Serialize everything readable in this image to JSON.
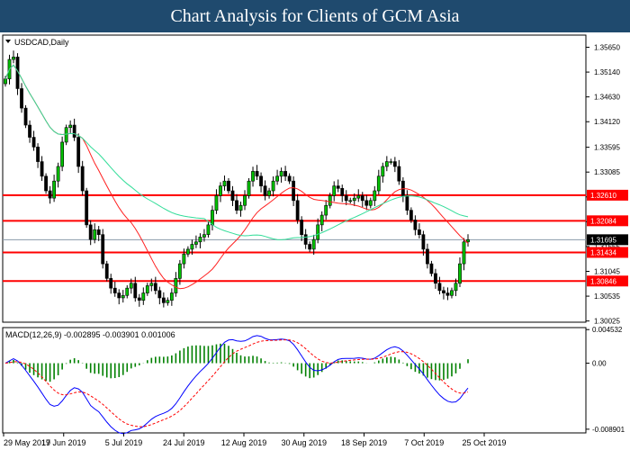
{
  "header": {
    "title": "Chart Analysis for Clients of GCM Asia"
  },
  "chart_data": [
    {
      "type": "candlestick",
      "symbol_label": "USDCAD,Daily",
      "ylim": [
        1.3,
        1.359
      ],
      "price_axis_ticks": [
        "1.35650",
        "1.35140",
        "1.34630",
        "1.34120",
        "1.33595",
        "1.33085",
        "1.32575",
        "1.32065",
        "1.31555",
        "1.31045",
        "1.30535",
        "1.30025"
      ],
      "time_axis_ticks": [
        "29 May 2019",
        "17 Jun 2019",
        "5 Jul 2019",
        "24 Jul 2019",
        "12 Aug 2019",
        "30 Aug 2019",
        "18 Sep 2019",
        "7 Oct 2019",
        "25 Oct 2019"
      ],
      "horizontal_levels": [
        {
          "label": "1.32610",
          "value": 1.3261,
          "color": "#ff0000"
        },
        {
          "label": "1.32084",
          "value": 1.32084,
          "color": "#ff0000"
        },
        {
          "label": "1.31434",
          "value": 1.31434,
          "color": "#ff0000"
        },
        {
          "label": "1.30846",
          "value": 1.30846,
          "color": "#ff0000"
        }
      ],
      "current_price": {
        "label": "1.31695",
        "value": 1.31695
      },
      "close_series": [
        1.35,
        1.354,
        1.3545,
        1.348,
        1.344,
        1.3405,
        1.338,
        1.336,
        1.333,
        1.33,
        1.327,
        1.3255,
        1.329,
        1.332,
        1.337,
        1.34,
        1.3405,
        1.338,
        1.332,
        1.327,
        1.32,
        1.317,
        1.319,
        1.318,
        1.312,
        1.309,
        1.307,
        1.306,
        1.305,
        1.3055,
        1.307,
        1.308,
        1.305,
        1.3045,
        1.306,
        1.3075,
        1.308,
        1.3065,
        1.305,
        1.304,
        1.3045,
        1.306,
        1.309,
        1.312,
        1.314,
        1.315,
        1.316,
        1.3165,
        1.3175,
        1.318,
        1.32,
        1.323,
        1.326,
        1.328,
        1.329,
        1.327,
        1.325,
        1.323,
        1.324,
        1.326,
        1.329,
        1.331,
        1.33,
        1.328,
        1.326,
        1.327,
        1.329,
        1.33,
        1.331,
        1.33,
        1.329,
        1.325,
        1.321,
        1.318,
        1.316,
        1.315,
        1.317,
        1.32,
        1.322,
        1.324,
        1.326,
        1.328,
        1.3275,
        1.326,
        1.325,
        1.325,
        1.3255,
        1.326,
        1.325,
        1.324,
        1.325,
        1.327,
        1.33,
        1.332,
        1.333,
        1.333,
        1.332,
        1.329,
        1.326,
        1.323,
        1.321,
        1.319,
        1.318,
        1.315,
        1.312,
        1.31,
        1.308,
        1.3065,
        1.306,
        1.3055,
        1.3065,
        1.308,
        1.312,
        1.3165,
        1.31695
      ],
      "ma_series": [
        {
          "color": "#ff2020",
          "period": 20
        },
        {
          "color": "#33dd99",
          "period": 50
        }
      ]
    },
    {
      "type": "macd",
      "label": "MACD(12,26,9) -0.002895 -0.003901 0.001006",
      "ylim": [
        -0.0094,
        0.0048
      ],
      "axis_ticks": [
        {
          "label": "0.004532",
          "value": 0.004532
        },
        {
          "label": "0.00",
          "value": 0.0
        },
        {
          "label": "-0.008901",
          "value": -0.008901
        }
      ],
      "macd_line_color": "#0000ff",
      "signal_line_color": "#ff0000",
      "histogram_color": "#008000"
    }
  ]
}
